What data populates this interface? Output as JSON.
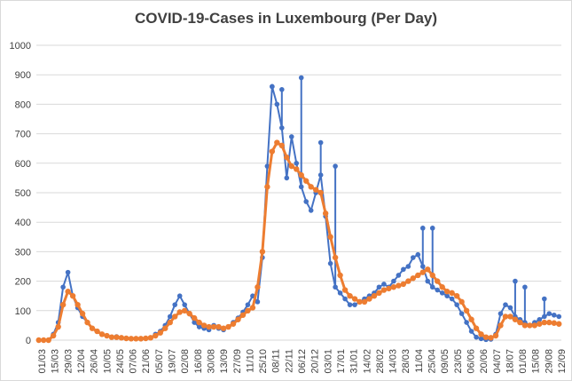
{
  "chart_data": {
    "type": "line",
    "title": "COVID-19-Cases in Luxembourg (Per Day)",
    "xlabel": "",
    "ylabel": "",
    "ylim": [
      0,
      1000
    ],
    "yticks": [
      0,
      100,
      200,
      300,
      400,
      500,
      600,
      700,
      800,
      900,
      1000
    ],
    "grid": true,
    "legend": "none",
    "x_tick_labels": [
      "01/03",
      "15/03",
      "29/03",
      "12/04",
      "26/04",
      "10/05",
      "24/05",
      "07/06",
      "21/06",
      "05/07",
      "19/07",
      "02/08",
      "16/08",
      "30/08",
      "13/09",
      "27/09",
      "11/10",
      "25/10",
      "08/11",
      "22/11",
      "06/12",
      "20/12",
      "03/01",
      "17/01",
      "31/01",
      "14/02",
      "28/02",
      "14/03",
      "28/03",
      "11/04",
      "25/04",
      "09/05",
      "23/05",
      "06/06",
      "20/06",
      "04/07",
      "18/07",
      "01/08",
      "15/08",
      "29/08",
      "12/09"
    ],
    "series": [
      {
        "color": "#4472C4",
        "marker": "circle",
        "values": [
          0,
          0,
          0,
          20,
          60,
          180,
          230,
          150,
          110,
          80,
          60,
          40,
          30,
          20,
          15,
          10,
          12,
          8,
          6,
          5,
          5,
          4,
          6,
          8,
          20,
          30,
          50,
          80,
          120,
          150,
          120,
          90,
          60,
          45,
          40,
          35,
          50,
          40,
          35,
          45,
          60,
          75,
          95,
          120,
          150,
          130,
          280,
          590,
          860,
          800,
          720,
          550,
          690,
          600,
          520,
          470,
          440,
          500,
          560,
          420,
          260,
          180,
          160,
          140,
          120,
          120,
          130,
          140,
          150,
          160,
          180,
          190,
          180,
          200,
          220,
          240,
          250,
          280,
          290,
          250,
          200,
          180,
          170,
          160,
          150,
          140,
          120,
          90,
          60,
          30,
          10,
          5,
          2,
          3,
          20,
          90,
          120,
          110,
          80,
          70,
          60,
          50,
          60,
          70,
          80,
          90,
          85,
          80
        ],
        "spikes": [
          [
            48,
            860
          ],
          [
            50,
            850
          ],
          [
            54,
            890
          ],
          [
            58,
            670
          ],
          [
            61,
            590
          ],
          [
            79,
            380
          ],
          [
            81,
            380
          ],
          [
            98,
            200
          ],
          [
            100,
            180
          ],
          [
            104,
            140
          ]
        ]
      },
      {
        "color": "#ED7D31",
        "marker": "circle",
        "values": [
          0,
          0,
          0,
          15,
          45,
          120,
          165,
          150,
          120,
          90,
          60,
          40,
          30,
          20,
          15,
          10,
          10,
          8,
          6,
          5,
          5,
          5,
          6,
          8,
          15,
          25,
          40,
          60,
          80,
          95,
          100,
          90,
          75,
          60,
          50,
          45,
          45,
          45,
          40,
          45,
          55,
          70,
          85,
          100,
          110,
          180,
          300,
          520,
          640,
          670,
          660,
          620,
          590,
          580,
          560,
          540,
          520,
          510,
          500,
          430,
          350,
          280,
          220,
          170,
          150,
          140,
          130,
          130,
          140,
          150,
          160,
          170,
          175,
          180,
          185,
          190,
          200,
          210,
          220,
          230,
          240,
          220,
          200,
          180,
          165,
          160,
          150,
          130,
          100,
          70,
          40,
          20,
          10,
          8,
          15,
          50,
          80,
          80,
          70,
          60,
          50,
          50,
          50,
          55,
          60,
          60,
          58,
          55
        ]
      }
    ]
  }
}
